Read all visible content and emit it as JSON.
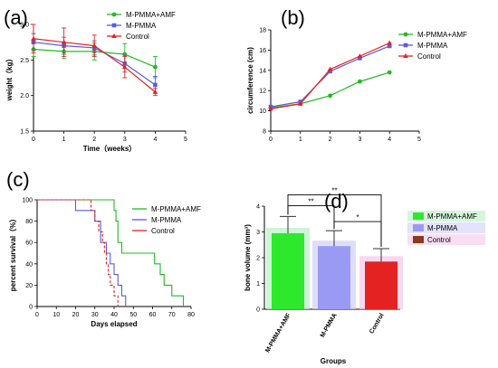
{
  "colors": {
    "amf": "#22bb22",
    "pmma": "#5b5bdc",
    "control": "#e52222"
  },
  "chart_data": [
    {
      "panel": "(a)",
      "type": "line",
      "xlabel": "Time（weeks）",
      "ylabel": "weight（kg）",
      "xlim": [
        0,
        5
      ],
      "ylim": [
        1.5,
        3.0
      ],
      "xticks": [
        "0",
        "1",
        "2",
        "3",
        "4",
        "5"
      ],
      "yticks": [
        "1.5",
        "2.0",
        "2.5",
        "3.0"
      ],
      "x": [
        0,
        1,
        2,
        3,
        4
      ],
      "series": [
        {
          "name": "M-PMMA+AMF",
          "values": [
            2.65,
            2.62,
            2.62,
            2.58,
            2.4
          ],
          "errors": [
            0.1,
            0.1,
            0.12,
            0.15,
            0.15
          ]
        },
        {
          "name": "M-PMMA",
          "values": [
            2.75,
            2.7,
            2.67,
            2.45,
            2.15
          ],
          "errors": [
            0.12,
            0.12,
            0.1,
            0.12,
            0.12
          ]
        },
        {
          "name": "Control",
          "values": [
            2.8,
            2.75,
            2.7,
            2.4,
            2.05
          ],
          "errors": [
            0.2,
            0.2,
            0.15,
            0.15,
            0.05
          ]
        }
      ]
    },
    {
      "panel": "(b)",
      "type": "line",
      "xlabel": "",
      "ylabel": "circumference (cm)",
      "xlim": [
        0,
        5
      ],
      "ylim": [
        8,
        18
      ],
      "xticks": [
        "0",
        "1",
        "2",
        "3",
        "4",
        "5"
      ],
      "yticks": [
        "8",
        "10",
        "12",
        "14",
        "16",
        "18"
      ],
      "x": [
        0,
        1,
        2,
        3,
        4
      ],
      "series": [
        {
          "name": "M-PMMA+AMF",
          "values": [
            10.3,
            10.7,
            11.5,
            12.9,
            13.8
          ]
        },
        {
          "name": "M-PMMA",
          "values": [
            10.4,
            10.9,
            13.9,
            15.2,
            16.4
          ]
        },
        {
          "name": "Control",
          "values": [
            10.2,
            10.7,
            14.1,
            15.4,
            16.7
          ]
        }
      ]
    },
    {
      "panel": "(c)",
      "type": "line",
      "xlabel": "Days elapsed",
      "ylabel": "percent survival（%）",
      "xlim": [
        0,
        80
      ],
      "ylim": [
        0,
        100
      ],
      "xticks": [
        "0",
        "10",
        "20",
        "30",
        "40",
        "50",
        "60",
        "70",
        "80"
      ],
      "yticks": [
        "0",
        "20",
        "40",
        "60",
        "80",
        "100"
      ],
      "series": [
        {
          "name": "M-PMMA+AMF",
          "steps": [
            [
              0,
              100
            ],
            [
              40,
              100
            ],
            [
              40,
              90
            ],
            [
              41,
              90
            ],
            [
              41,
              80
            ],
            [
              42,
              80
            ],
            [
              42,
              60
            ],
            [
              44,
              60
            ],
            [
              44,
              50
            ],
            [
              61,
              50
            ],
            [
              61,
              40
            ],
            [
              64,
              40
            ],
            [
              64,
              30
            ],
            [
              66,
              30
            ],
            [
              66,
              20
            ],
            [
              70,
              20
            ],
            [
              70,
              10
            ],
            [
              76,
              10
            ],
            [
              76,
              0
            ]
          ]
        },
        {
          "name": "M-PMMA",
          "steps": [
            [
              0,
              100
            ],
            [
              20,
              100
            ],
            [
              20,
              90
            ],
            [
              30,
              90
            ],
            [
              30,
              80
            ],
            [
              33,
              80
            ],
            [
              33,
              60
            ],
            [
              36,
              60
            ],
            [
              36,
              50
            ],
            [
              38,
              50
            ],
            [
              38,
              40
            ],
            [
              40,
              40
            ],
            [
              40,
              30
            ],
            [
              42,
              30
            ],
            [
              42,
              20
            ],
            [
              44,
              20
            ],
            [
              44,
              10
            ],
            [
              46,
              10
            ],
            [
              46,
              0
            ]
          ]
        },
        {
          "name": "Control",
          "steps": [
            [
              0,
              100
            ],
            [
              28,
              100
            ],
            [
              28,
              90
            ],
            [
              30,
              90
            ],
            [
              30,
              80
            ],
            [
              32,
              80
            ],
            [
              32,
              70
            ],
            [
              34,
              70
            ],
            [
              34,
              60
            ],
            [
              35,
              60
            ],
            [
              35,
              50
            ],
            [
              36,
              50
            ],
            [
              36,
              40
            ],
            [
              37,
              40
            ],
            [
              37,
              30
            ],
            [
              38,
              30
            ],
            [
              38,
              20
            ],
            [
              40,
              20
            ],
            [
              40,
              10
            ],
            [
              42,
              10
            ],
            [
              42,
              0
            ]
          ]
        }
      ]
    },
    {
      "panel": "(d)",
      "type": "bar",
      "xlabel": "Groups",
      "ylabel": "bone volume (mm³)",
      "ylim": [
        0,
        4
      ],
      "yticks": [
        "0",
        "1",
        "2",
        "3",
        "4"
      ],
      "categories": [
        "M-PMMA+AMF",
        "M-PMMA",
        "Control"
      ],
      "values": [
        2.95,
        2.45,
        1.85
      ],
      "errors": [
        0.65,
        0.6,
        0.5
      ],
      "legend": [
        "M-PMMA+AMF",
        "M-PMMA",
        "Control"
      ],
      "significance": [
        {
          "from": 0,
          "to": 1,
          "label": "**"
        },
        {
          "from": 1,
          "to": 2,
          "label": "*"
        },
        {
          "from": 0,
          "to": 2,
          "label": "**"
        }
      ]
    }
  ]
}
